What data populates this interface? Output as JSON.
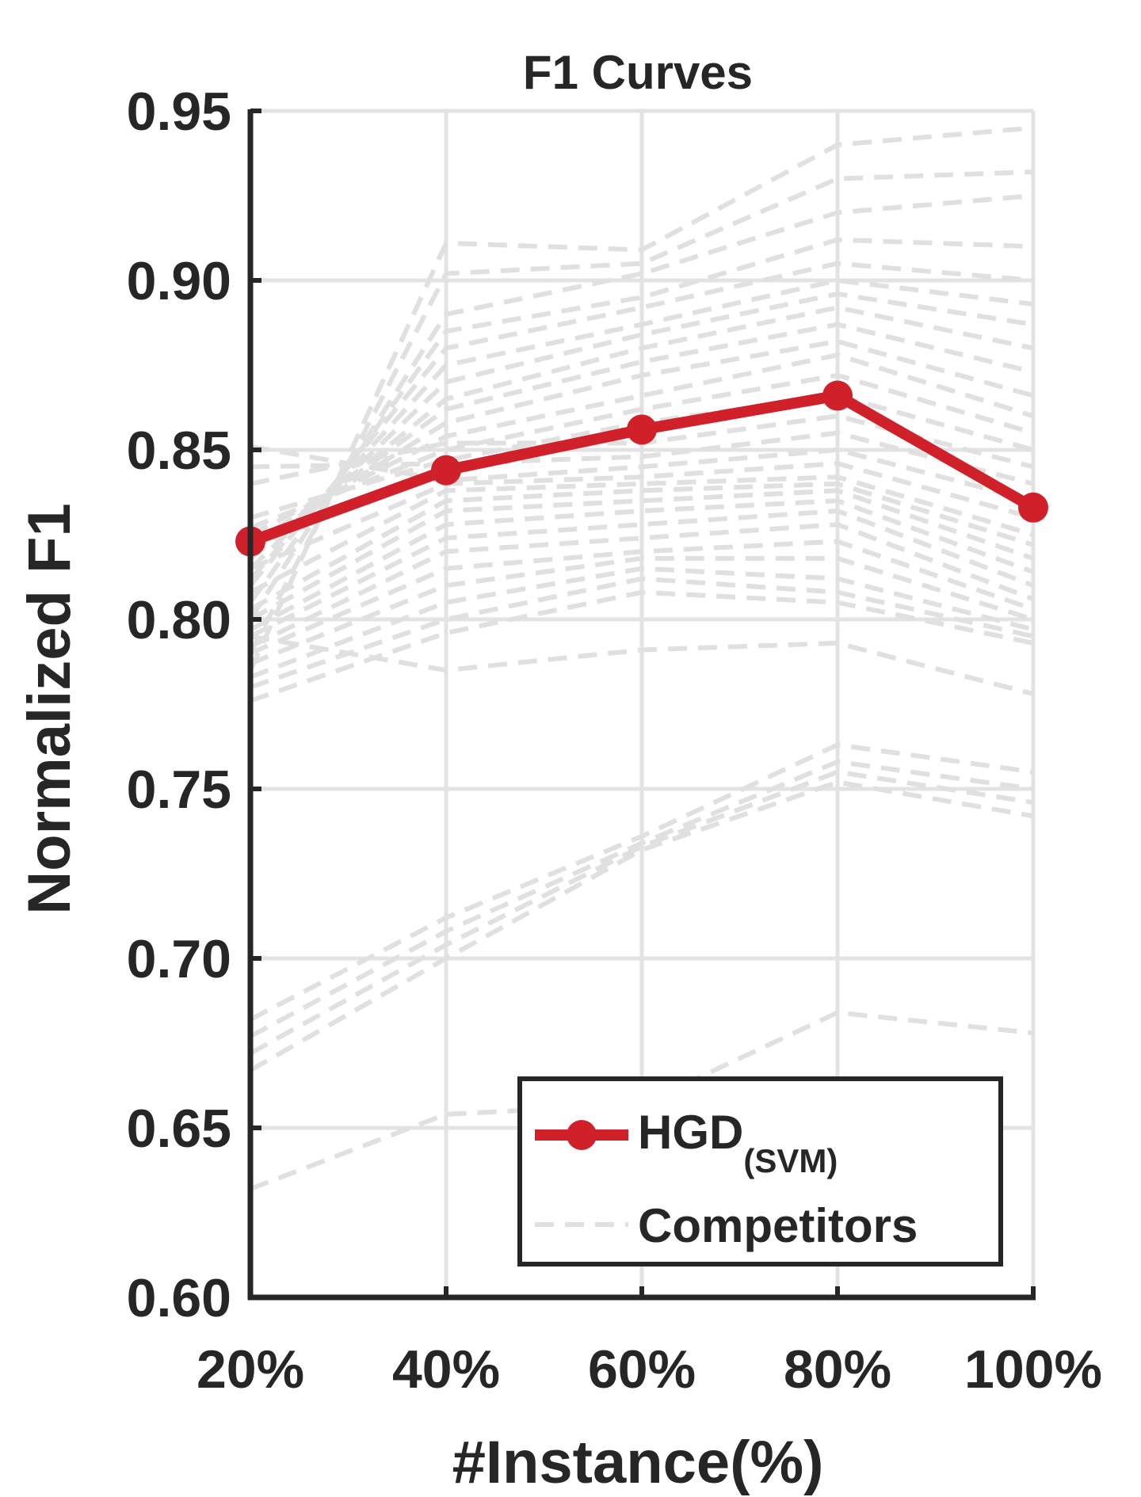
{
  "chart_data": {
    "type": "line",
    "title": "F1 Curves",
    "xlabel": "#Instance(%)",
    "ylabel": "Normalized F1",
    "categories": [
      "20%",
      "40%",
      "60%",
      "80%",
      "100%"
    ],
    "x": [
      20,
      40,
      60,
      80,
      100
    ],
    "ylim": [
      0.6,
      0.95
    ],
    "yticks": [
      "0.60",
      "0.65",
      "0.70",
      "0.75",
      "0.80",
      "0.85",
      "0.90",
      "0.95"
    ],
    "grid": true,
    "legend_position": "bottom-right",
    "series": [
      {
        "name": "HGD(SVM)",
        "legend_main": "HGD",
        "legend_sub": "(SVM)",
        "color": "#d0202a",
        "style": "solid-marker",
        "values": [
          0.823,
          0.844,
          0.856,
          0.866,
          0.833
        ]
      },
      {
        "name": "Competitors",
        "legend_main": "Competitors",
        "color": "#e0e0e0",
        "style": "dashed",
        "values": [
          0.785,
          0.911,
          0.909,
          0.94,
          0.945
        ]
      }
    ],
    "competitor_lines": [
      [
        0.785,
        0.911,
        0.909,
        0.94,
        0.945
      ],
      [
        0.79,
        0.902,
        0.905,
        0.93,
        0.932
      ],
      [
        0.8,
        0.89,
        0.902,
        0.92,
        0.925
      ],
      [
        0.805,
        0.885,
        0.895,
        0.912,
        0.91
      ],
      [
        0.81,
        0.88,
        0.892,
        0.905,
        0.9
      ],
      [
        0.812,
        0.875,
        0.887,
        0.9,
        0.893
      ],
      [
        0.815,
        0.87,
        0.884,
        0.896,
        0.887
      ],
      [
        0.818,
        0.865,
        0.88,
        0.892,
        0.88
      ],
      [
        0.82,
        0.862,
        0.876,
        0.887,
        0.873
      ],
      [
        0.822,
        0.858,
        0.872,
        0.882,
        0.866
      ],
      [
        0.825,
        0.854,
        0.866,
        0.878,
        0.86
      ],
      [
        0.827,
        0.85,
        0.862,
        0.872,
        0.855
      ],
      [
        0.83,
        0.847,
        0.858,
        0.866,
        0.85
      ],
      [
        0.84,
        0.852,
        0.852,
        0.86,
        0.845
      ],
      [
        0.845,
        0.846,
        0.848,
        0.855,
        0.84
      ],
      [
        0.851,
        0.841,
        0.845,
        0.85,
        0.835
      ],
      [
        0.815,
        0.84,
        0.842,
        0.846,
        0.83
      ],
      [
        0.808,
        0.838,
        0.84,
        0.842,
        0.825
      ],
      [
        0.803,
        0.835,
        0.838,
        0.84,
        0.822
      ],
      [
        0.8,
        0.832,
        0.835,
        0.838,
        0.818
      ],
      [
        0.797,
        0.828,
        0.832,
        0.835,
        0.814
      ],
      [
        0.795,
        0.824,
        0.828,
        0.832,
        0.81
      ],
      [
        0.792,
        0.82,
        0.824,
        0.828,
        0.806
      ],
      [
        0.79,
        0.815,
        0.82,
        0.823,
        0.803
      ],
      [
        0.787,
        0.81,
        0.818,
        0.818,
        0.8
      ],
      [
        0.783,
        0.805,
        0.815,
        0.812,
        0.797
      ],
      [
        0.78,
        0.8,
        0.812,
        0.808,
        0.795
      ],
      [
        0.776,
        0.796,
        0.808,
        0.805,
        0.793
      ],
      [
        0.795,
        0.785,
        0.791,
        0.793,
        0.778
      ],
      [
        0.682,
        0.712,
        0.736,
        0.763,
        0.755
      ],
      [
        0.677,
        0.708,
        0.734,
        0.758,
        0.75
      ],
      [
        0.672,
        0.704,
        0.733,
        0.755,
        0.746
      ],
      [
        0.667,
        0.7,
        0.732,
        0.752,
        0.742
      ],
      [
        0.632,
        0.654,
        0.657,
        0.684,
        0.678
      ]
    ]
  }
}
